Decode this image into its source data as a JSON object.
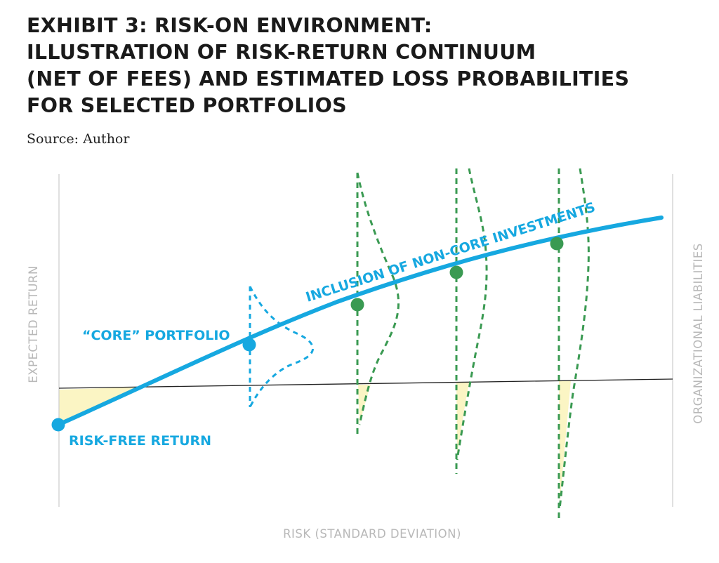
{
  "title_lines": [
    "EXHIBIT 3: RISK-ON ENVIRONMENT:",
    "ILLUSTRATION OF RISK-RETURN CONTINUUM",
    "(NET OF FEES) AND ESTIMATED LOSS PROBABILITIES",
    "FOR SELECTED PORTFOLIOS"
  ],
  "source": "Source: Author",
  "chart_data": {
    "type": "line",
    "xlabel": "RISK (STANDARD DEVIATION)",
    "ylabel": "EXPECTED RETURN",
    "y2label": "ORGANIZATIONAL LIABILITIES",
    "annotations": {
      "risk_free": "RISK-FREE RETURN",
      "core": "“CORE” PORTFOLIO",
      "non_core": "INCLUSION OF NON-CORE INVESTMENTS"
    },
    "colors": {
      "continuum": "#16a8e0",
      "core_distribution": "#16a8e0",
      "non_core": "#3a9a52",
      "loss_fill": "#fbf5c4",
      "liabilities_line": "#222222",
      "axis": "#cccccc"
    },
    "points": [
      {
        "name": "RISK-FREE RETURN",
        "kind": "risk-free"
      },
      {
        "name": "“CORE” PORTFOLIO",
        "kind": "core"
      },
      {
        "name": "non-core-1",
        "kind": "non-core"
      },
      {
        "name": "non-core-2",
        "kind": "non-core"
      },
      {
        "name": "non-core-3",
        "kind": "non-core"
      }
    ],
    "grid": false
  }
}
